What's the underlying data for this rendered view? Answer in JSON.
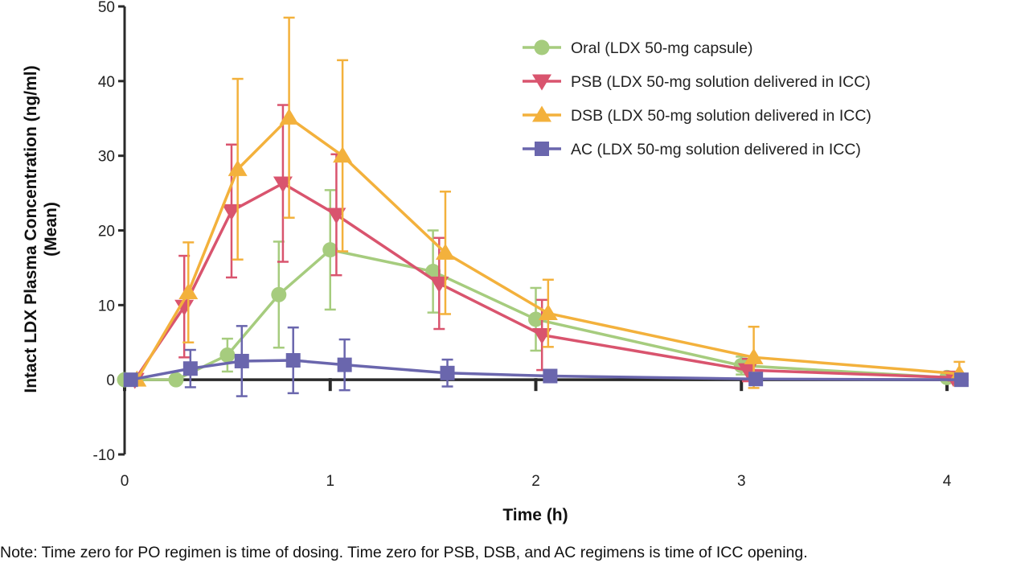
{
  "chart_data": {
    "type": "line",
    "title": "",
    "xlabel": "Time (h)",
    "ylabel": "Intact LDX Plasma Concentration (ng/ml)",
    "ylabel_line2": "(Mean)",
    "xlim": [
      0,
      4
    ],
    "ylim": [
      -10,
      50
    ],
    "xticks": [
      0,
      1,
      2,
      3,
      4
    ],
    "yticks": [
      -10,
      0,
      10,
      20,
      30,
      40,
      50
    ],
    "grid": false,
    "legend_position": "top-right",
    "note": "Note: Time zero for PO regimen is time of dosing. Time zero for PSB, DSB, and AC regimens is time of ICC opening.",
    "series": [
      {
        "name": "Oral (LDX 50-mg capsule)",
        "color": "#a6cc7e",
        "marker": "circle",
        "x": [
          0,
          0.25,
          0.5,
          0.75,
          1.0,
          1.5,
          2.0,
          3.0,
          4.0
        ],
        "y": [
          0,
          0,
          3.3,
          11.4,
          17.4,
          14.5,
          8.1,
          1.9,
          0.3
        ],
        "err": [
          0,
          0,
          2.2,
          7.1,
          8.0,
          5.5,
          4.2,
          1.2,
          0.3
        ]
      },
      {
        "name": "PSB (LDX 50-mg solution delivered in ICC)",
        "color": "#d9546e",
        "marker": "triangle-down",
        "x": [
          0.05,
          0.29,
          0.52,
          0.77,
          1.03,
          1.53,
          2.03,
          3.03,
          4.03
        ],
        "y": [
          0,
          9.8,
          22.6,
          26.3,
          22.1,
          12.9,
          6.0,
          1.3,
          0.3
        ],
        "err": [
          0,
          6.8,
          8.9,
          10.5,
          8.1,
          6.1,
          4.7,
          1.5,
          0.4
        ]
      },
      {
        "name": "DSB (LDX 50-mg solution delivered in ICC)",
        "color": "#f3b13c",
        "marker": "triangle-up",
        "x": [
          0.06,
          0.31,
          0.55,
          0.8,
          1.06,
          1.56,
          2.06,
          3.06,
          4.06
        ],
        "y": [
          0,
          11.7,
          28.2,
          35.1,
          30.0,
          17.0,
          8.9,
          3.0,
          0.8
        ],
        "err": [
          0,
          6.7,
          12.1,
          13.4,
          12.8,
          8.2,
          4.5,
          4.1,
          1.6
        ]
      },
      {
        "name": "AC (LDX 50-mg solution delivered in ICC)",
        "color": "#6a66ad",
        "marker": "square",
        "x": [
          0.03,
          0.32,
          0.57,
          0.82,
          1.07,
          1.57,
          2.07,
          3.07,
          4.07
        ],
        "y": [
          0,
          1.5,
          2.5,
          2.6,
          2.0,
          0.9,
          0.5,
          0.1,
          0.0
        ],
        "err": [
          0,
          2.5,
          4.7,
          4.4,
          3.4,
          1.8,
          0.7,
          0.2,
          0.1
        ]
      }
    ]
  }
}
